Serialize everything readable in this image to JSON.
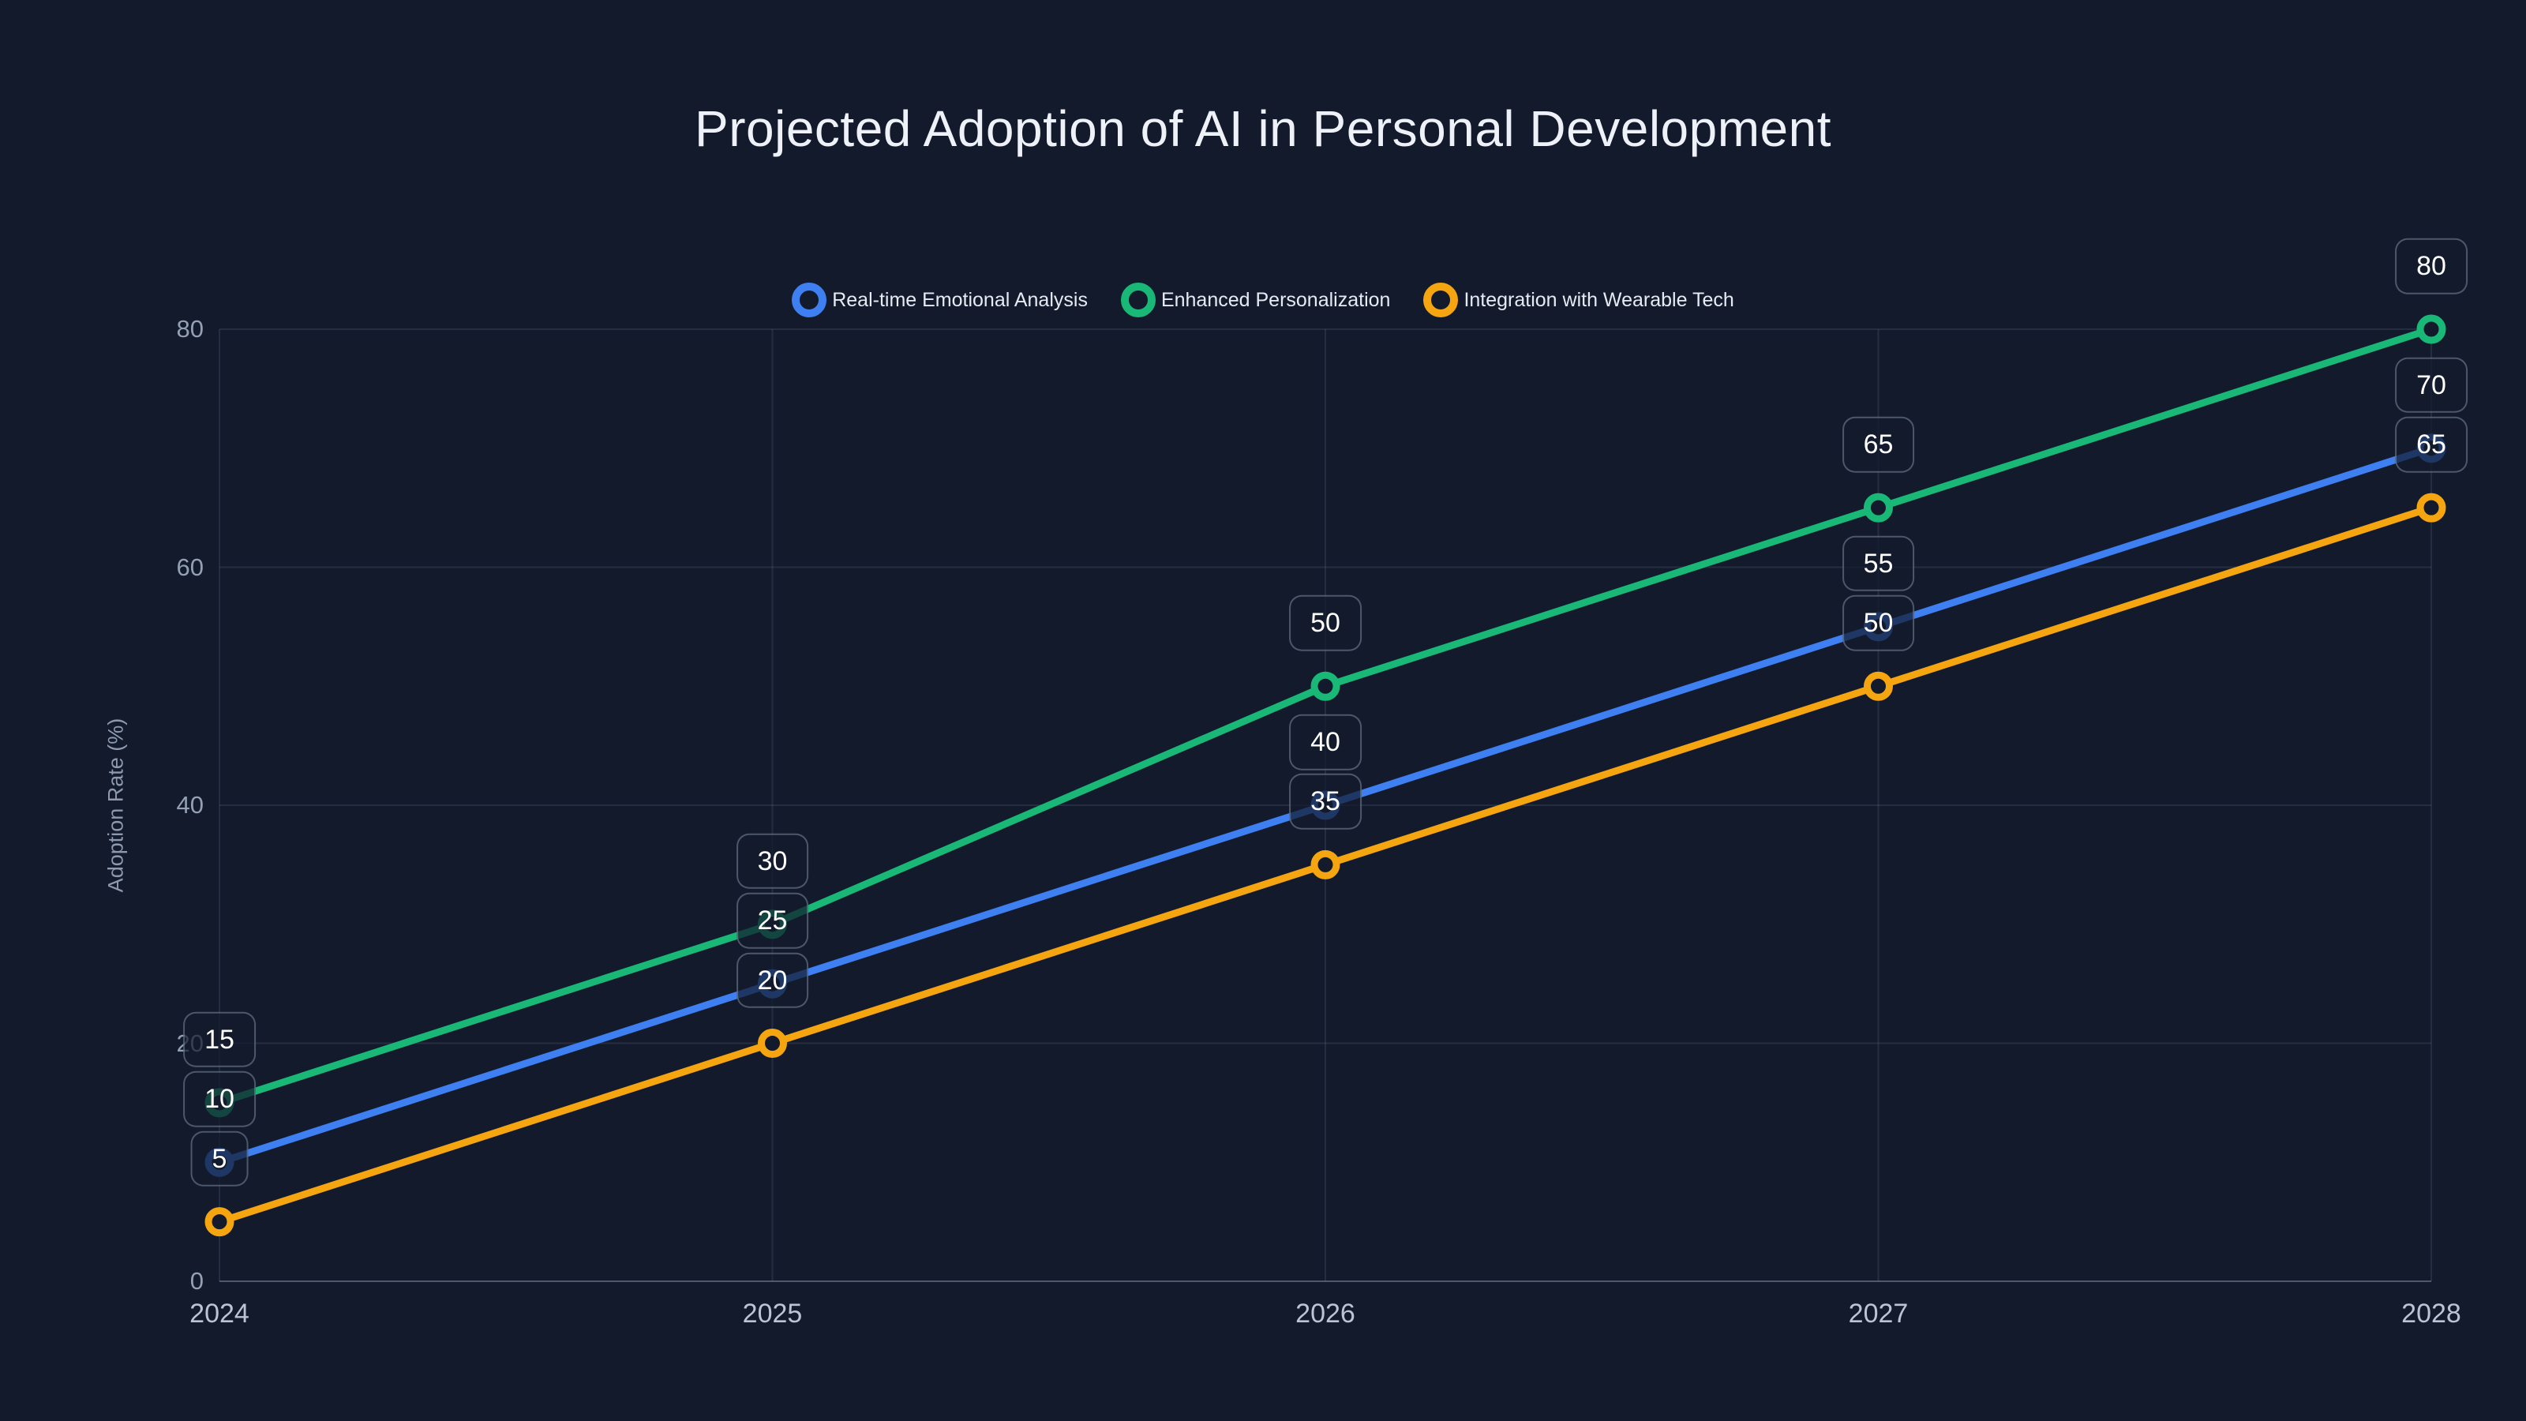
{
  "title": "Projected Adoption of AI in Personal Development",
  "colors": {
    "background": "#121A2C",
    "grid": "rgba(148,163,184,0.15)",
    "axis_line": "rgba(148,163,184,0.45)",
    "marker_fill": "#121A2C",
    "title_text": "#EEF2F8",
    "y_tick_text": "#94A0B4",
    "x_tick_text": "#BAC4D5",
    "label_text": "#FFFFFF",
    "label_border": "rgba(148,163,184,0.45)"
  },
  "chart_data": {
    "type": "line",
    "title": "Projected Adoption of AI in Personal Development",
    "xlabel": "",
    "ylabel": "Adoption Rate (%)",
    "x": [
      "2024",
      "2025",
      "2026",
      "2027",
      "2028"
    ],
    "y_ticks": [
      0,
      20,
      40,
      60,
      80
    ],
    "ylim": [
      0,
      80
    ],
    "grid": true,
    "legend_position": "top-center",
    "point_labels_visible": true,
    "series": [
      {
        "name": "Real-time Emotional Analysis",
        "color": "#3E80F2",
        "values": [
          10,
          25,
          40,
          55,
          70
        ]
      },
      {
        "name": "Enhanced Personalization",
        "color": "#19B877",
        "values": [
          15,
          30,
          50,
          65,
          80
        ]
      },
      {
        "name": "Integration with Wearable Tech",
        "color": "#F5A50F",
        "values": [
          5,
          20,
          35,
          50,
          65
        ]
      }
    ]
  }
}
